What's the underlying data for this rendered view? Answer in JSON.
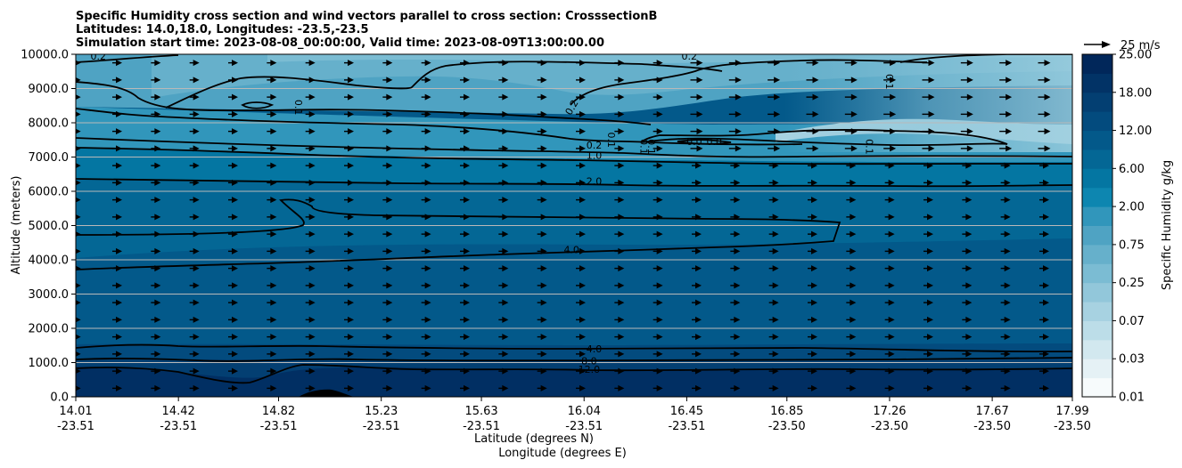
{
  "title_lines": [
    "Specific Humidity cross section and wind vectors parallel to cross section: CrosssectionB",
    "Latitudes: 14.0,18.0, Longitudes: -23.5,-23.5",
    "Simulation start time: 2023-08-08_00:00:00, Valid time: 2023-08-09T13:00:00.00"
  ],
  "chart_data": {
    "type": "heatmap",
    "ylabel": "Altitude (meters)",
    "xlabel_lines": [
      "Latitude (degrees N)",
      "Longitude (degrees E)"
    ],
    "ylim": [
      0,
      10000
    ],
    "y_ticks": [
      "0.0",
      "1000.0",
      "2000.0",
      "3000.0",
      "4000.0",
      "5000.0",
      "6000.0",
      "7000.0",
      "8000.0",
      "9000.0",
      "10000.0"
    ],
    "x_ticks": [
      {
        "lat": "14.01",
        "lon": "-23.51"
      },
      {
        "lat": "14.42",
        "lon": "-23.51"
      },
      {
        "lat": "14.82",
        "lon": "-23.51"
      },
      {
        "lat": "15.23",
        "lon": "-23.51"
      },
      {
        "lat": "15.63",
        "lon": "-23.51"
      },
      {
        "lat": "16.04",
        "lon": "-23.51"
      },
      {
        "lat": "16.45",
        "lon": "-23.51"
      },
      {
        "lat": "16.85",
        "lon": "-23.50"
      },
      {
        "lat": "17.26",
        "lon": "-23.50"
      },
      {
        "lat": "17.67",
        "lon": "-23.50"
      },
      {
        "lat": "17.99",
        "lon": "-23.50"
      }
    ],
    "grid": "horizontal",
    "colorbar": {
      "label": "Specific Humidity g/kg",
      "levels": [
        0.01,
        0.02,
        0.03,
        0.05,
        0.07,
        0.1,
        0.25,
        0.5,
        0.75,
        1,
        2,
        4,
        6,
        8,
        12,
        15,
        18,
        20,
        25
      ],
      "tick_labels": [
        "0.01",
        "0.03",
        "0.07",
        "0.25",
        "0.75",
        "2.00",
        "6.00",
        "12.00",
        "18.00",
        "25.00"
      ],
      "colors": [
        "#f7fbfc",
        "#e5f1f5",
        "#d2e8ef",
        "#bcdde8",
        "#a7d2e1",
        "#92c7da",
        "#7bbcd3",
        "#66b0cb",
        "#4fa3c3",
        "#3196bb",
        "#0d86b0",
        "#0476a2",
        "#046795",
        "#03598a",
        "#034b7e",
        "#033f72",
        "#023366",
        "#01275a"
      ],
      "units_note": "g/kg"
    },
    "quiver_key": "25 m/s",
    "contour_labels": [
      {
        "text": "0.2",
        "lat": 14.1,
        "alt": 9950
      },
      {
        "text": "0.1",
        "lat": 14.9,
        "alt": 8450,
        "rot": 90
      },
      {
        "text": "0.2",
        "lat": 15.99,
        "alt": 8450,
        "rot": -60
      },
      {
        "text": "0.2",
        "lat": 16.08,
        "alt": 7350
      },
      {
        "text": "1.0",
        "lat": 16.08,
        "alt": 7050
      },
      {
        "text": "2.0",
        "lat": 16.08,
        "alt": 6300
      },
      {
        "text": "0.1",
        "lat": 16.15,
        "alt": 7500,
        "rot": 90
      },
      {
        "text": "0.1",
        "lat": 16.28,
        "alt": 7300,
        "rot": 90
      },
      {
        "text": "0.1",
        "lat": 16.31,
        "alt": 7300,
        "rot": 90
      },
      {
        "text": "0.0",
        "lat": 16.48,
        "alt": 7450
      },
      {
        "text": "0.0",
        "lat": 16.56,
        "alt": 7450
      },
      {
        "text": "0.2",
        "lat": 16.46,
        "alt": 9950
      },
      {
        "text": "0.1",
        "lat": 17.26,
        "alt": 9200,
        "rot": 90
      },
      {
        "text": "0.1",
        "lat": 17.18,
        "alt": 7300,
        "rot": 90
      },
      {
        "text": "4.0",
        "lat": 15.99,
        "alt": 4300
      },
      {
        "text": "4.0",
        "lat": 16.08,
        "alt": 1400
      },
      {
        "text": "8.0",
        "lat": 16.06,
        "alt": 1050
      },
      {
        "text": "12.0",
        "lat": 16.06,
        "alt": 800
      }
    ]
  }
}
